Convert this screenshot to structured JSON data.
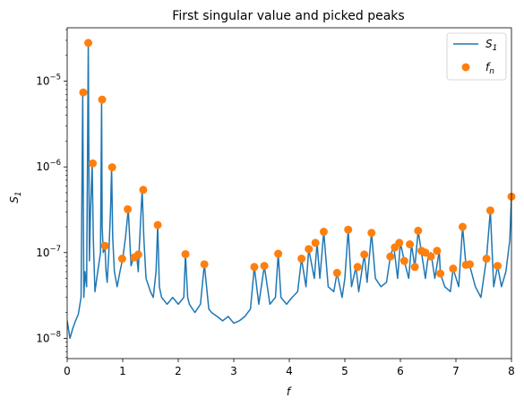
{
  "chart_data": {
    "type": "line",
    "title": "First singular value and picked peaks",
    "xlabel": "f",
    "ylabel": "S",
    "ylabel_subscript": "1",
    "xlim": [
      0,
      8
    ],
    "ylim": [
      5.8e-09,
      4.2e-05
    ],
    "yscale": "log",
    "grid": false,
    "legend_position": "top-right",
    "x_ticks": [
      0,
      1,
      2,
      3,
      4,
      5,
      6,
      7,
      8
    ],
    "x_tick_labels": [
      "0",
      "1",
      "2",
      "3",
      "4",
      "5",
      "6",
      "7",
      "8"
    ],
    "y_ticks": [
      1e-08,
      1e-07,
      1e-06,
      1e-05
    ],
    "y_tick_labels": [
      "10",
      "10",
      "10",
      "10"
    ],
    "y_tick_exponents": [
      "−8",
      "−7",
      "−6",
      "−5"
    ],
    "series": [
      {
        "name": "S",
        "name_subscript": "1",
        "kind": "line",
        "color": "#1f77b4",
        "x": [
          0.0,
          0.05,
          0.1,
          0.15,
          0.2,
          0.25,
          0.28,
          0.3,
          0.32,
          0.35,
          0.38,
          0.4,
          0.42,
          0.45,
          0.47,
          0.5,
          0.55,
          0.6,
          0.62,
          0.63,
          0.65,
          0.68,
          0.7,
          0.72,
          0.75,
          0.78,
          0.8,
          0.82,
          0.85,
          0.9,
          0.95,
          1.0,
          1.05,
          1.1,
          1.15,
          1.2,
          1.25,
          1.28,
          1.3,
          1.35,
          1.38,
          1.42,
          1.5,
          1.55,
          1.6,
          1.63,
          1.66,
          1.7,
          1.8,
          1.9,
          2.0,
          2.1,
          2.13,
          2.17,
          2.2,
          2.3,
          2.4,
          2.47,
          2.55,
          2.6,
          2.7,
          2.8,
          2.9,
          3.0,
          3.1,
          3.2,
          3.3,
          3.37,
          3.45,
          3.55,
          3.65,
          3.75,
          3.8,
          3.85,
          3.95,
          4.05,
          4.15,
          4.22,
          4.3,
          4.35,
          4.45,
          4.5,
          4.55,
          4.62,
          4.7,
          4.8,
          4.86,
          4.95,
          5.0,
          5.06,
          5.12,
          5.2,
          5.25,
          5.35,
          5.4,
          5.48,
          5.55,
          5.65,
          5.75,
          5.82,
          5.88,
          5.95,
          6.0,
          6.07,
          6.15,
          6.2,
          6.26,
          6.32,
          6.38,
          6.45,
          6.5,
          6.55,
          6.62,
          6.7,
          6.72,
          6.8,
          6.9,
          6.95,
          7.05,
          7.12,
          7.18,
          7.25,
          7.35,
          7.45,
          7.55,
          7.62,
          7.68,
          7.75,
          7.82,
          7.9,
          7.97,
          8.0
        ],
        "y": [
          1.6e-08,
          1e-08,
          1.3e-08,
          1.6e-08,
          1.9e-08,
          3e-08,
          7.4e-06,
          3e-08,
          6e-08,
          4e-08,
          2.8e-05,
          8e-08,
          3e-07,
          1.1e-06,
          1.5e-07,
          3.5e-08,
          6e-08,
          1e-07,
          6.1e-06,
          2e-07,
          1e-07,
          1.2e-07,
          6e-08,
          4.5e-08,
          1e-07,
          3e-07,
          9.9e-07,
          1.5e-07,
          6e-08,
          4e-08,
          6e-08,
          8.5e-08,
          1.5e-07,
          3.2e-07,
          7e-08,
          9e-08,
          9.5e-08,
          6e-08,
          1.2e-07,
          5.4e-07,
          1.5e-07,
          5e-08,
          3.5e-08,
          3e-08,
          6e-08,
          2.1e-07,
          4e-08,
          3e-08,
          2.5e-08,
          3e-08,
          2.5e-08,
          3e-08,
          9.6e-08,
          3e-08,
          2.5e-08,
          2e-08,
          2.5e-08,
          7.3e-08,
          2.2e-08,
          2e-08,
          1.8e-08,
          1.6e-08,
          1.8e-08,
          1.5e-08,
          1.6e-08,
          1.8e-08,
          2.2e-08,
          6.8e-08,
          2.5e-08,
          7e-08,
          2.5e-08,
          3e-08,
          9.7e-08,
          3e-08,
          2.5e-08,
          3e-08,
          3.5e-08,
          8.5e-08,
          4e-08,
          1.1e-07,
          5e-08,
          1.3e-07,
          5e-08,
          1.75e-07,
          4e-08,
          3.5e-08,
          5.8e-08,
          3e-08,
          5e-08,
          1.85e-07,
          4e-08,
          6.8e-08,
          3.5e-08,
          9.5e-08,
          4.5e-08,
          1.7e-07,
          5e-08,
          4e-08,
          4.5e-08,
          9e-08,
          1.2e-07,
          5e-08,
          1.3e-07,
          8e-08,
          5e-08,
          1.25e-07,
          6.8e-08,
          1.8e-07,
          1e-07,
          5e-08,
          9e-08,
          1e-07,
          5e-08,
          1.05e-07,
          5.7e-08,
          4e-08,
          3.5e-08,
          6.5e-08,
          4e-08,
          2e-07,
          7.2e-08,
          7e-08,
          4e-08,
          3e-08,
          8.5e-08,
          3.1e-07,
          4e-08,
          7e-08,
          4e-08,
          6e-08,
          1.4e-07,
          4.5e-07
        ]
      },
      {
        "name": "f",
        "name_subscript": "n",
        "kind": "scatter",
        "color": "#ff7f0e",
        "x": [
          0.29,
          0.38,
          0.46,
          0.63,
          0.68,
          0.81,
          0.99,
          1.09,
          1.21,
          1.28,
          1.37,
          1.63,
          2.13,
          2.47,
          3.37,
          3.55,
          3.8,
          4.22,
          4.35,
          4.47,
          4.62,
          4.86,
          5.06,
          5.23,
          5.35,
          5.48,
          5.82,
          5.9,
          5.98,
          6.07,
          6.17,
          6.26,
          6.32,
          6.38,
          6.45,
          6.55,
          6.66,
          6.72,
          6.95,
          7.12,
          7.18,
          7.25,
          7.55,
          7.62,
          7.75,
          8.0
        ],
        "y": [
          7.4e-06,
          2.8e-05,
          1.1e-06,
          6.1e-06,
          1.2e-07,
          9.9e-07,
          8.5e-08,
          3.2e-07,
          8.8e-08,
          9.5e-08,
          5.4e-07,
          2.1e-07,
          9.6e-08,
          7.3e-08,
          6.8e-08,
          7e-08,
          9.7e-08,
          8.5e-08,
          1.1e-07,
          1.3e-07,
          1.75e-07,
          5.8e-08,
          1.85e-07,
          6.8e-08,
          9.5e-08,
          1.7e-07,
          9e-08,
          1.15e-07,
          1.3e-07,
          8e-08,
          1.25e-07,
          6.8e-08,
          1.8e-07,
          1.05e-07,
          1e-07,
          9e-08,
          1.05e-07,
          5.7e-08,
          6.5e-08,
          2e-07,
          7.2e-08,
          7.3e-08,
          8.5e-08,
          3.1e-07,
          7e-08,
          4.5e-07
        ]
      }
    ]
  }
}
